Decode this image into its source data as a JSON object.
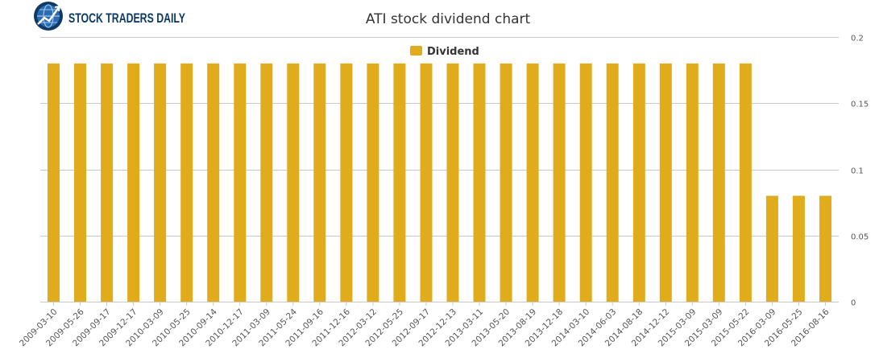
{
  "brand": {
    "name": "STOCK TRADERS DAILY",
    "icon": "bull-globe-logo-icon"
  },
  "colors": {
    "bar": "#E0AC1C",
    "grid": "#C8C8C8",
    "text": "#333333",
    "axis_text": "#555555",
    "brand": "#0E3A66",
    "brand_light": "#2B6CB0"
  },
  "chart_data": {
    "type": "bar",
    "title": "ATI stock dividend chart",
    "legend_position": "top-center",
    "grid": true,
    "y_axis_position": "right",
    "ylim": [
      0,
      0.2
    ],
    "yticks": [
      "0",
      "0.05",
      "0.1",
      "0.15",
      "0.2"
    ],
    "ytick_values": [
      0,
      0.05,
      0.1,
      0.15,
      0.2
    ],
    "categories": [
      "2009-03-10",
      "2009-05-26",
      "2009-09-17",
      "2009-12-17",
      "2010-03-09",
      "2010-05-25",
      "2010-09-14",
      "2010-12-17",
      "2011-03-09",
      "2011-05-24",
      "2011-09-16",
      "2011-12-16",
      "2012-03-12",
      "2012-05-25",
      "2012-09-17",
      "2012-12-13",
      "2013-03-11",
      "2013-05-20",
      "2013-08-19",
      "2013-12-18",
      "2014-03-10",
      "2014-06-03",
      "2014-08-18",
      "2014-12-12",
      "2015-03-09",
      "2015-03-09",
      "2015-05-22",
      "2016-03-09",
      "2016-05-25",
      "2016-08-16"
    ],
    "series": [
      {
        "name": "Dividend",
        "values": [
          0.18,
          0.18,
          0.18,
          0.18,
          0.18,
          0.18,
          0.18,
          0.18,
          0.18,
          0.18,
          0.18,
          0.18,
          0.18,
          0.18,
          0.18,
          0.18,
          0.18,
          0.18,
          0.18,
          0.18,
          0.18,
          0.18,
          0.18,
          0.18,
          0.18,
          0.18,
          0.18,
          0.08,
          0.08,
          0.08
        ]
      }
    ]
  }
}
